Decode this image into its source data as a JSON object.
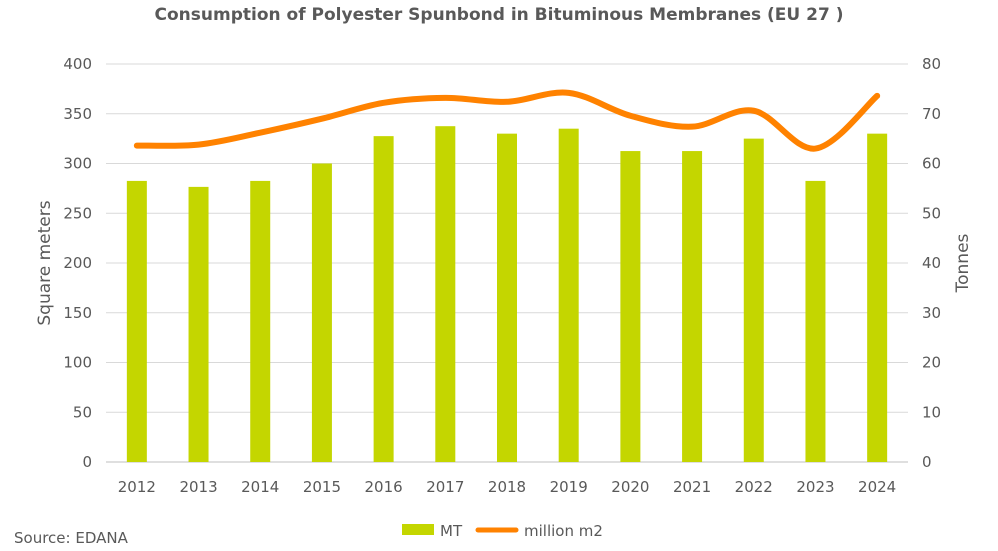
{
  "chart_data": {
    "type": "bar+line",
    "title": "Consumption of Polyester Spunbond in Bituminous Membranes (EU 27 )",
    "categories": [
      "2012",
      "2013",
      "2014",
      "2015",
      "2016",
      "2017",
      "2018",
      "2019",
      "2020",
      "2021",
      "2022",
      "2023",
      "2024"
    ],
    "ylabel_left": "Square meters",
    "ylabel_right": "Tonnes",
    "ylim_left": [
      0,
      400
    ],
    "ylim_right": [
      0,
      80
    ],
    "yticks_left": [
      "0",
      "50",
      "100",
      "150",
      "200",
      "250",
      "300",
      "350",
      "400"
    ],
    "yticks_right": [
      "0",
      "10",
      "20",
      "30",
      "40",
      "50",
      "60",
      "70",
      "80"
    ],
    "grid": true,
    "legend_position": "bottom",
    "series": [
      {
        "name": "MT",
        "type": "bar",
        "axis": "right",
        "color": "#c4d600",
        "values": [
          56.5,
          55.3,
          56.5,
          60,
          65.5,
          67.5,
          66,
          67,
          62.5,
          62.5,
          65,
          56.5,
          66
        ]
      },
      {
        "name": "million m2",
        "type": "line",
        "axis": "left",
        "color": "#ff8200",
        "values": [
          318,
          319,
          331,
          345,
          361,
          366,
          362,
          371,
          348,
          337,
          353,
          315,
          368
        ]
      }
    ],
    "source": "Source: EDANA"
  }
}
